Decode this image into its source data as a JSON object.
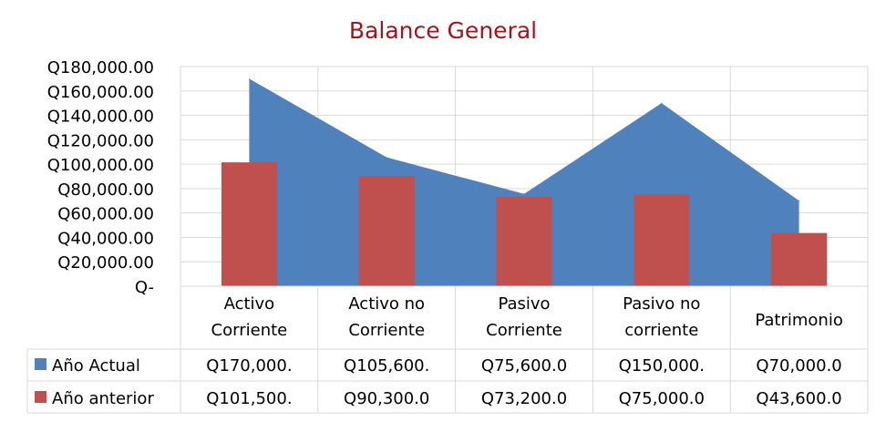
{
  "chart_data": {
    "type": "area+bar",
    "title": "Balance General",
    "categories": [
      [
        "Activo",
        "Corriente"
      ],
      [
        "Activo no",
        "Corriente"
      ],
      [
        "Pasivo",
        "Corriente"
      ],
      [
        "Pasivo no",
        "corriente"
      ],
      [
        "Patrimonio"
      ]
    ],
    "ylim": [
      0,
      180000
    ],
    "yticks": [
      "Q-",
      "Q20,000.00",
      "Q40,000.00",
      "Q60,000.00",
      "Q80,000.00",
      "Q100,000.00",
      "Q120,000.00",
      "Q140,000.00",
      "Q160,000.00",
      "Q180,000.00"
    ],
    "grid": true,
    "legend": "data-table",
    "series": [
      {
        "name": "Año Actual",
        "type": "area",
        "color": "#4F81BD",
        "values": [
          170000,
          105600,
          75600,
          150000,
          70000
        ],
        "table_labels": [
          "Q170,000.",
          "Q105,600.",
          "Q75,600.0",
          "Q150,000.",
          "Q70,000.0"
        ]
      },
      {
        "name": "Año anterior",
        "type": "bar",
        "color": "#C0504D",
        "values": [
          101500,
          90300,
          73200,
          75000,
          43600
        ],
        "table_labels": [
          "Q101,500.",
          "Q90,300.0",
          "Q73,200.0",
          "Q75,000.0",
          "Q43,600.0"
        ]
      }
    ]
  }
}
